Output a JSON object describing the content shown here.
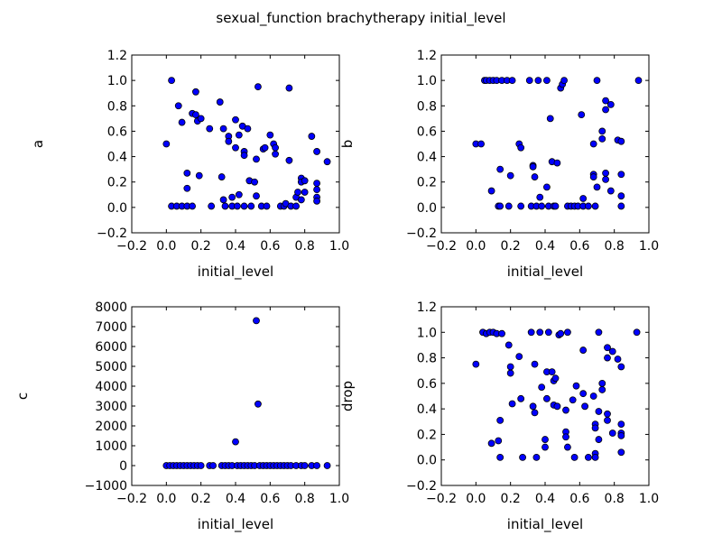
{
  "figure": {
    "title": "sexual_function brachytherapy initial_level"
  },
  "chart_data": [
    {
      "type": "scatter",
      "xlabel": "initial_level",
      "ylabel": "a",
      "xlim": [
        -0.2,
        1.0
      ],
      "ylim": [
        -0.2,
        1.2
      ],
      "xticks": [
        -0.2,
        0.0,
        0.2,
        0.4,
        0.6,
        0.8,
        1.0
      ],
      "yticks": [
        -0.2,
        0.0,
        0.2,
        0.4,
        0.6,
        0.8,
        1.0,
        1.2
      ],
      "xtick_labels": [
        "−0.2",
        "0.0",
        "0.2",
        "0.4",
        "0.6",
        "0.8",
        "1.0"
      ],
      "ytick_labels": [
        "−0.2",
        "0.0",
        "0.2",
        "0.4",
        "0.6",
        "0.8",
        "1.0",
        "1.2"
      ],
      "marker_color": "#0000ff",
      "points": [
        [
          0.0,
          0.5
        ],
        [
          0.03,
          1.0
        ],
        [
          0.03,
          0.01
        ],
        [
          0.06,
          0.01
        ],
        [
          0.07,
          0.8
        ],
        [
          0.09,
          0.67
        ],
        [
          0.09,
          0.01
        ],
        [
          0.12,
          0.27
        ],
        [
          0.12,
          0.15
        ],
        [
          0.12,
          0.01
        ],
        [
          0.15,
          0.74
        ],
        [
          0.15,
          0.01
        ],
        [
          0.17,
          0.91
        ],
        [
          0.17,
          0.73
        ],
        [
          0.18,
          0.68
        ],
        [
          0.19,
          0.25
        ],
        [
          0.2,
          0.7
        ],
        [
          0.25,
          0.62
        ],
        [
          0.26,
          0.01
        ],
        [
          0.31,
          0.83
        ],
        [
          0.32,
          0.24
        ],
        [
          0.33,
          0.62
        ],
        [
          0.33,
          0.06
        ],
        [
          0.34,
          0.01
        ],
        [
          0.36,
          0.56
        ],
        [
          0.36,
          0.52
        ],
        [
          0.38,
          0.08
        ],
        [
          0.38,
          0.01
        ],
        [
          0.4,
          0.69
        ],
        [
          0.4,
          0.47
        ],
        [
          0.41,
          0.01
        ],
        [
          0.42,
          0.57
        ],
        [
          0.42,
          0.1
        ],
        [
          0.44,
          0.64
        ],
        [
          0.45,
          0.44
        ],
        [
          0.45,
          0.41
        ],
        [
          0.45,
          0.01
        ],
        [
          0.47,
          0.62
        ],
        [
          0.48,
          0.21
        ],
        [
          0.49,
          0.01
        ],
        [
          0.51,
          0.2
        ],
        [
          0.52,
          0.38
        ],
        [
          0.52,
          0.09
        ],
        [
          0.53,
          0.95
        ],
        [
          0.55,
          0.01
        ],
        [
          0.56,
          0.46
        ],
        [
          0.57,
          0.47
        ],
        [
          0.58,
          0.01
        ],
        [
          0.6,
          0.57
        ],
        [
          0.62,
          0.5
        ],
        [
          0.63,
          0.47
        ],
        [
          0.63,
          0.42
        ],
        [
          0.66,
          0.01
        ],
        [
          0.68,
          0.01
        ],
        [
          0.69,
          0.03
        ],
        [
          0.71,
          0.94
        ],
        [
          0.71,
          0.37
        ],
        [
          0.72,
          0.01
        ],
        [
          0.75,
          0.01
        ],
        [
          0.75,
          0.08
        ],
        [
          0.76,
          0.12
        ],
        [
          0.78,
          0.23
        ],
        [
          0.78,
          0.2
        ],
        [
          0.78,
          0.06
        ],
        [
          0.8,
          0.21
        ],
        [
          0.8,
          0.12
        ],
        [
          0.84,
          0.56
        ],
        [
          0.87,
          0.44
        ],
        [
          0.87,
          0.19
        ],
        [
          0.87,
          0.14
        ],
        [
          0.87,
          0.08
        ],
        [
          0.87,
          0.05
        ],
        [
          0.93,
          0.36
        ]
      ]
    },
    {
      "type": "scatter",
      "xlabel": "initial_level",
      "ylabel": "b",
      "xlim": [
        -0.2,
        1.0
      ],
      "ylim": [
        -0.2,
        1.2
      ],
      "xticks": [
        -0.2,
        0.0,
        0.2,
        0.4,
        0.6,
        0.8,
        1.0
      ],
      "yticks": [
        -0.2,
        0.0,
        0.2,
        0.4,
        0.6,
        0.8,
        1.0,
        1.2
      ],
      "xtick_labels": [
        "−0.2",
        "0.0",
        "0.2",
        "0.4",
        "0.6",
        "0.8",
        "1.0"
      ],
      "ytick_labels": [
        "−0.2",
        "0.0",
        "0.2",
        "0.4",
        "0.6",
        "0.8",
        "1.0",
        "1.2"
      ],
      "marker_color": "#0000ff",
      "points": [
        [
          0.0,
          0.5
        ],
        [
          0.03,
          0.5
        ],
        [
          0.05,
          1.0
        ],
        [
          0.06,
          1.0
        ],
        [
          0.08,
          1.0
        ],
        [
          0.09,
          0.13
        ],
        [
          0.1,
          1.0
        ],
        [
          0.12,
          1.0
        ],
        [
          0.13,
          0.01
        ],
        [
          0.14,
          0.3
        ],
        [
          0.14,
          0.01
        ],
        [
          0.15,
          1.0
        ],
        [
          0.18,
          1.0
        ],
        [
          0.19,
          0.01
        ],
        [
          0.2,
          0.25
        ],
        [
          0.21,
          1.0
        ],
        [
          0.25,
          0.5
        ],
        [
          0.26,
          0.47
        ],
        [
          0.26,
          0.01
        ],
        [
          0.31,
          1.0
        ],
        [
          0.32,
          0.01
        ],
        [
          0.33,
          0.33
        ],
        [
          0.33,
          0.32
        ],
        [
          0.34,
          0.24
        ],
        [
          0.35,
          0.01
        ],
        [
          0.36,
          1.0
        ],
        [
          0.37,
          0.08
        ],
        [
          0.38,
          0.01
        ],
        [
          0.41,
          0.16
        ],
        [
          0.41,
          1.0
        ],
        [
          0.42,
          0.01
        ],
        [
          0.43,
          0.7
        ],
        [
          0.44,
          0.36
        ],
        [
          0.45,
          0.01
        ],
        [
          0.46,
          0.01
        ],
        [
          0.47,
          0.35
        ],
        [
          0.49,
          0.94
        ],
        [
          0.5,
          0.97
        ],
        [
          0.51,
          1.0
        ],
        [
          0.53,
          0.01
        ],
        [
          0.55,
          0.01
        ],
        [
          0.57,
          0.01
        ],
        [
          0.59,
          0.01
        ],
        [
          0.61,
          0.73
        ],
        [
          0.62,
          0.07
        ],
        [
          0.62,
          0.01
        ],
        [
          0.65,
          0.01
        ],
        [
          0.68,
          0.26
        ],
        [
          0.68,
          0.24
        ],
        [
          0.68,
          0.5
        ],
        [
          0.69,
          0.01
        ],
        [
          0.7,
          1.0
        ],
        [
          0.7,
          0.16
        ],
        [
          0.73,
          0.6
        ],
        [
          0.73,
          0.54
        ],
        [
          0.75,
          0.27
        ],
        [
          0.75,
          0.22
        ],
        [
          0.75,
          0.84
        ],
        [
          0.75,
          0.77
        ],
        [
          0.78,
          0.81
        ],
        [
          0.78,
          0.13
        ],
        [
          0.82,
          0.53
        ],
        [
          0.84,
          0.52
        ],
        [
          0.84,
          0.26
        ],
        [
          0.84,
          0.09
        ],
        [
          0.84,
          0.01
        ],
        [
          0.94,
          1.0
        ]
      ]
    },
    {
      "type": "scatter",
      "xlabel": "initial_level",
      "ylabel": "c",
      "xlim": [
        -0.2,
        1.0
      ],
      "ylim": [
        -1000,
        8000
      ],
      "xticks": [
        -0.2,
        0.0,
        0.2,
        0.4,
        0.6,
        0.8,
        1.0
      ],
      "yticks": [
        -1000,
        0,
        1000,
        2000,
        3000,
        4000,
        5000,
        6000,
        7000,
        8000
      ],
      "xtick_labels": [
        "−0.2",
        "0.0",
        "0.2",
        "0.4",
        "0.6",
        "0.8",
        "1.0"
      ],
      "ytick_labels": [
        "−1000",
        "0",
        "1000",
        "2000",
        "3000",
        "4000",
        "5000",
        "6000",
        "7000",
        "8000"
      ],
      "marker_color": "#0000ff",
      "points": [
        [
          0.0,
          0
        ],
        [
          0.02,
          0
        ],
        [
          0.04,
          0
        ],
        [
          0.06,
          0
        ],
        [
          0.08,
          0
        ],
        [
          0.1,
          0
        ],
        [
          0.12,
          0
        ],
        [
          0.14,
          0
        ],
        [
          0.16,
          0
        ],
        [
          0.18,
          0
        ],
        [
          0.2,
          0
        ],
        [
          0.25,
          0
        ],
        [
          0.27,
          0
        ],
        [
          0.32,
          0
        ],
        [
          0.34,
          0
        ],
        [
          0.36,
          0
        ],
        [
          0.38,
          0
        ],
        [
          0.4,
          1200
        ],
        [
          0.41,
          0
        ],
        [
          0.43,
          0
        ],
        [
          0.45,
          0
        ],
        [
          0.47,
          0
        ],
        [
          0.49,
          0
        ],
        [
          0.51,
          0
        ],
        [
          0.52,
          7300
        ],
        [
          0.53,
          3100
        ],
        [
          0.54,
          0
        ],
        [
          0.56,
          0
        ],
        [
          0.58,
          0
        ],
        [
          0.6,
          0
        ],
        [
          0.62,
          0
        ],
        [
          0.64,
          0
        ],
        [
          0.66,
          0
        ],
        [
          0.68,
          0
        ],
        [
          0.7,
          0
        ],
        [
          0.72,
          0
        ],
        [
          0.75,
          0
        ],
        [
          0.78,
          0
        ],
        [
          0.8,
          0
        ],
        [
          0.84,
          0
        ],
        [
          0.87,
          0
        ],
        [
          0.93,
          0
        ]
      ]
    },
    {
      "type": "scatter",
      "xlabel": "initial_level",
      "ylabel": "drop",
      "xlim": [
        -0.2,
        1.0
      ],
      "ylim": [
        -0.2,
        1.2
      ],
      "xticks": [
        -0.2,
        0.0,
        0.2,
        0.4,
        0.6,
        0.8,
        1.0
      ],
      "yticks": [
        -0.2,
        0.0,
        0.2,
        0.4,
        0.6,
        0.8,
        1.0,
        1.2
      ],
      "xtick_labels": [
        "−0.2",
        "0.0",
        "0.2",
        "0.4",
        "0.6",
        "0.8",
        "1.0"
      ],
      "ytick_labels": [
        "−0.2",
        "0.0",
        "0.2",
        "0.4",
        "0.6",
        "0.8",
        "1.0",
        "1.2"
      ],
      "marker_color": "#0000ff",
      "points": [
        [
          0.0,
          0.75
        ],
        [
          0.04,
          1.0
        ],
        [
          0.06,
          0.99
        ],
        [
          0.08,
          1.0
        ],
        [
          0.09,
          0.13
        ],
        [
          0.1,
          1.0
        ],
        [
          0.12,
          0.99
        ],
        [
          0.13,
          0.15
        ],
        [
          0.14,
          0.31
        ],
        [
          0.14,
          0.02
        ],
        [
          0.15,
          0.99
        ],
        [
          0.19,
          0.9
        ],
        [
          0.2,
          0.73
        ],
        [
          0.2,
          0.68
        ],
        [
          0.21,
          0.44
        ],
        [
          0.25,
          0.81
        ],
        [
          0.26,
          0.48
        ],
        [
          0.27,
          0.02
        ],
        [
          0.32,
          1.0
        ],
        [
          0.33,
          0.42
        ],
        [
          0.34,
          0.37
        ],
        [
          0.34,
          0.75
        ],
        [
          0.35,
          0.02
        ],
        [
          0.37,
          1.0
        ],
        [
          0.38,
          0.57
        ],
        [
          0.4,
          0.16
        ],
        [
          0.4,
          0.1
        ],
        [
          0.41,
          0.69
        ],
        [
          0.41,
          0.48
        ],
        [
          0.42,
          1.0
        ],
        [
          0.44,
          0.69
        ],
        [
          0.45,
          0.62
        ],
        [
          0.45,
          0.43
        ],
        [
          0.46,
          0.64
        ],
        [
          0.47,
          0.42
        ],
        [
          0.48,
          0.98
        ],
        [
          0.49,
          0.99
        ],
        [
          0.52,
          0.39
        ],
        [
          0.52,
          0.22
        ],
        [
          0.52,
          0.18
        ],
        [
          0.53,
          1.0
        ],
        [
          0.53,
          0.1
        ],
        [
          0.56,
          0.47
        ],
        [
          0.57,
          0.02
        ],
        [
          0.58,
          0.58
        ],
        [
          0.62,
          0.86
        ],
        [
          0.62,
          0.52
        ],
        [
          0.63,
          0.42
        ],
        [
          0.65,
          0.02
        ],
        [
          0.68,
          0.5
        ],
        [
          0.69,
          0.28
        ],
        [
          0.69,
          0.25
        ],
        [
          0.69,
          0.05
        ],
        [
          0.69,
          0.02
        ],
        [
          0.71,
          0.38
        ],
        [
          0.71,
          1.0
        ],
        [
          0.71,
          0.16
        ],
        [
          0.73,
          0.6
        ],
        [
          0.73,
          0.55
        ],
        [
          0.76,
          0.88
        ],
        [
          0.76,
          0.8
        ],
        [
          0.76,
          0.36
        ],
        [
          0.76,
          0.31
        ],
        [
          0.79,
          0.85
        ],
        [
          0.79,
          0.21
        ],
        [
          0.82,
          0.79
        ],
        [
          0.84,
          0.73
        ],
        [
          0.84,
          0.28
        ],
        [
          0.84,
          0.21
        ],
        [
          0.84,
          0.19
        ],
        [
          0.84,
          0.06
        ],
        [
          0.93,
          1.0
        ]
      ]
    }
  ]
}
